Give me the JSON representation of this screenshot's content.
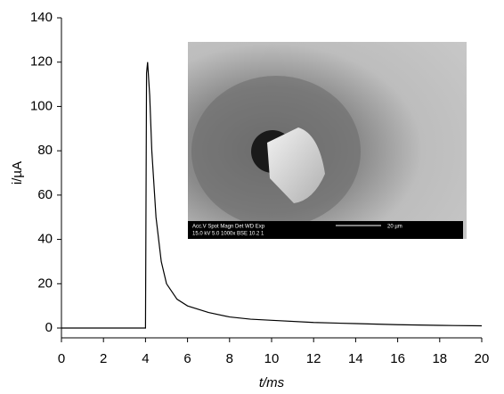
{
  "chart_data": {
    "type": "line",
    "xlabel": "t/ms",
    "ylabel": "i/µA",
    "x": [
      0,
      1,
      2,
      3,
      4,
      4.05,
      4.1,
      4.2,
      4.3,
      4.5,
      4.75,
      5,
      5.5,
      6,
      7,
      8,
      9,
      10,
      12,
      14,
      16,
      18,
      20
    ],
    "series": [
      {
        "color": "#000000",
        "values": [
          0,
          0,
          0,
          0,
          0,
          115,
          120,
          105,
          80,
          50,
          30,
          20,
          13,
          10,
          7,
          5,
          4,
          3.5,
          2.5,
          2,
          1.5,
          1.2,
          1
        ]
      }
    ],
    "xlim": [
      0,
      20
    ],
    "xticks": [
      0,
      2,
      4,
      6,
      8,
      10,
      12,
      14,
      16,
      18,
      20
    ],
    "ylim": [
      0,
      140
    ],
    "yticks": [
      0,
      20,
      40,
      60,
      80,
      100,
      120,
      140
    ],
    "grid": false,
    "annotations": [
      "Acc.V   Spot  Magn    Det   WD   Exp",
      "15.0 kV  5.0   1000x   BSE  10.2  1",
      "20 µm"
    ]
  }
}
